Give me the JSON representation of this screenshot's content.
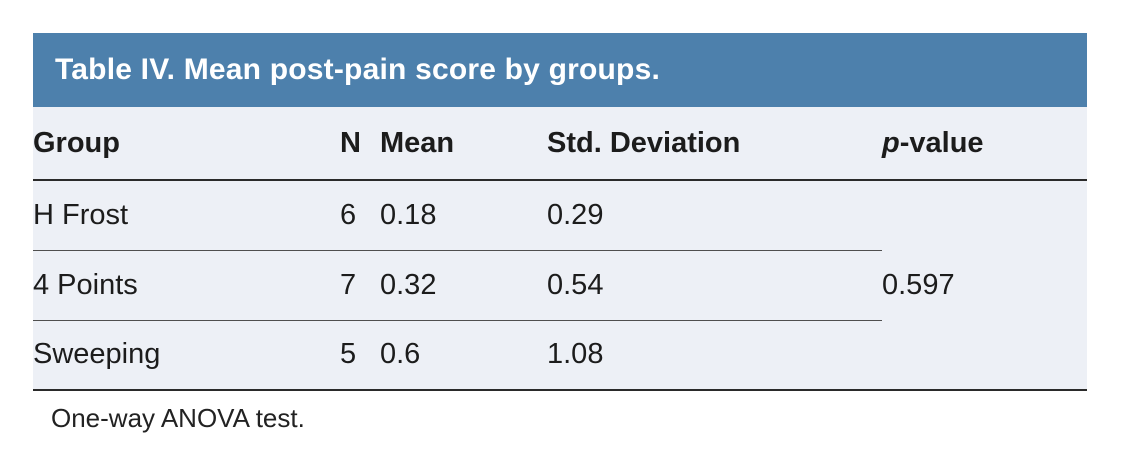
{
  "table": {
    "title": "Table IV. Mean post-pain score by groups.",
    "header": {
      "group": "Group",
      "n": "N",
      "mean": "Mean",
      "std": "Std. Deviation",
      "p_italic": "p",
      "p_suffix": "-value"
    },
    "rows": [
      {
        "group": "H Frost",
        "n": "6",
        "mean": "0.18",
        "std": "0.29"
      },
      {
        "group": "4 Points",
        "n": "7",
        "mean": "0.32",
        "std": "0.54"
      },
      {
        "group": "Sweeping",
        "n": "5",
        "mean": "0.6",
        "std": "1.08"
      }
    ],
    "p_value": "0.597",
    "footnote": "One-way ANOVA test.",
    "colors": {
      "title_bg": "#4d80ac",
      "title_text": "#ffffff",
      "body_bg": "#edf0f6",
      "text": "#1c1c1c",
      "strong_line": "#2a2a2a",
      "row_line": "#4f4f4f"
    }
  }
}
